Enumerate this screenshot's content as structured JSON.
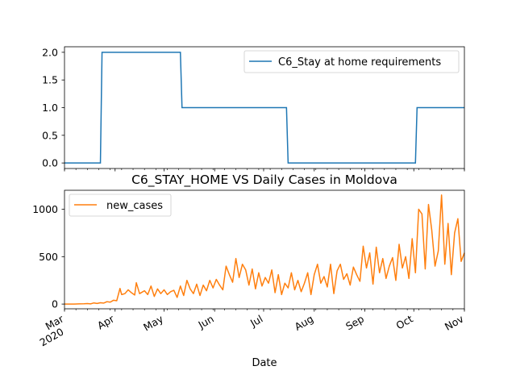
{
  "chart_data": [
    {
      "type": "line",
      "title": "",
      "xlabel": "",
      "ylabel": "",
      "ylim": [
        -0.1,
        2.1
      ],
      "yticks": [
        0.0,
        0.5,
        1.0,
        1.5,
        2.0
      ],
      "ytick_labels": [
        "0.0",
        "0.5",
        "1.0",
        "1.5",
        "2.0"
      ],
      "legend_position": "upper right",
      "color": "#1f77b4",
      "series": [
        {
          "name": "C6_Stay at home requirements",
          "x": [
            "2020-03-01",
            "2020-03-23",
            "2020-03-24",
            "2020-05-11",
            "2020-05-12",
            "2020-07-15",
            "2020-07-16",
            "2020-10-02",
            "2020-10-03",
            "2020-11-01"
          ],
          "y": [
            0,
            0,
            2,
            2,
            1,
            1,
            0,
            0,
            1,
            1
          ]
        }
      ]
    },
    {
      "type": "line",
      "title": "C6_STAY_HOME VS Daily Cases in Moldova",
      "xlabel": "Date",
      "ylabel": "",
      "ylim": [
        -50,
        1200
      ],
      "yticks": [
        0,
        500,
        1000
      ],
      "ytick_labels": [
        "0",
        "500",
        "1000"
      ],
      "legend_position": "upper left",
      "color": "#ff7f0e",
      "x_range": [
        "2020-03-01",
        "2020-11-01"
      ],
      "x_ticks": [
        {
          "date": "2020-03-01",
          "label": "Mar",
          "sublabel": "2020"
        },
        {
          "date": "2020-04-01",
          "label": "Apr"
        },
        {
          "date": "2020-05-01",
          "label": "May"
        },
        {
          "date": "2020-06-01",
          "label": "Jun"
        },
        {
          "date": "2020-07-01",
          "label": "Jul"
        },
        {
          "date": "2020-08-01",
          "label": "Aug"
        },
        {
          "date": "2020-09-01",
          "label": "Sep"
        },
        {
          "date": "2020-10-01",
          "label": "Oct"
        },
        {
          "date": "2020-11-01",
          "label": "Nov"
        }
      ],
      "series": [
        {
          "name": "new_cases",
          "x": [
            "2020-03-01",
            "2020-03-07",
            "2020-03-10",
            "2020-03-13",
            "2020-03-15",
            "2020-03-17",
            "2020-03-19",
            "2020-03-21",
            "2020-03-23",
            "2020-03-25",
            "2020-03-27",
            "2020-03-29",
            "2020-03-31",
            "2020-04-02",
            "2020-04-04",
            "2020-04-05",
            "2020-04-07",
            "2020-04-09",
            "2020-04-11",
            "2020-04-13",
            "2020-04-14",
            "2020-04-16",
            "2020-04-18",
            "2020-04-19",
            "2020-04-21",
            "2020-04-23",
            "2020-04-25",
            "2020-04-27",
            "2020-04-29",
            "2020-05-01",
            "2020-05-03",
            "2020-05-05",
            "2020-05-07",
            "2020-05-09",
            "2020-05-11",
            "2020-05-13",
            "2020-05-15",
            "2020-05-17",
            "2020-05-19",
            "2020-05-21",
            "2020-05-23",
            "2020-05-25",
            "2020-05-27",
            "2020-05-29",
            "2020-05-31",
            "2020-06-02",
            "2020-06-04",
            "2020-06-06",
            "2020-06-08",
            "2020-06-10",
            "2020-06-12",
            "2020-06-14",
            "2020-06-16",
            "2020-06-18",
            "2020-06-20",
            "2020-06-22",
            "2020-06-24",
            "2020-06-26",
            "2020-06-28",
            "2020-06-30",
            "2020-07-02",
            "2020-07-04",
            "2020-07-06",
            "2020-07-08",
            "2020-07-10",
            "2020-07-12",
            "2020-07-14",
            "2020-07-16",
            "2020-07-18",
            "2020-07-20",
            "2020-07-22",
            "2020-07-24",
            "2020-07-26",
            "2020-07-28",
            "2020-07-30",
            "2020-08-01",
            "2020-08-03",
            "2020-08-05",
            "2020-08-07",
            "2020-08-09",
            "2020-08-11",
            "2020-08-13",
            "2020-08-15",
            "2020-08-17",
            "2020-08-19",
            "2020-08-21",
            "2020-08-23",
            "2020-08-25",
            "2020-08-27",
            "2020-08-29",
            "2020-08-31",
            "2020-09-02",
            "2020-09-04",
            "2020-09-06",
            "2020-09-08",
            "2020-09-10",
            "2020-09-12",
            "2020-09-14",
            "2020-09-16",
            "2020-09-18",
            "2020-09-20",
            "2020-09-22",
            "2020-09-24",
            "2020-09-26",
            "2020-09-28",
            "2020-09-30",
            "2020-10-02",
            "2020-10-04",
            "2020-10-06",
            "2020-10-08",
            "2020-10-10",
            "2020-10-12",
            "2020-10-14",
            "2020-10-16",
            "2020-10-18",
            "2020-10-20",
            "2020-10-22",
            "2020-10-24",
            "2020-10-26",
            "2020-10-28",
            "2020-10-30",
            "2020-11-01"
          ],
          "y": [
            0,
            0,
            2,
            3,
            5,
            2,
            12,
            6,
            14,
            10,
            25,
            20,
            40,
            35,
            165,
            100,
            110,
            150,
            120,
            95,
            225,
            110,
            130,
            140,
            100,
            190,
            80,
            160,
            110,
            150,
            100,
            130,
            145,
            70,
            190,
            90,
            250,
            160,
            110,
            210,
            90,
            200,
            140,
            250,
            170,
            260,
            200,
            150,
            400,
            310,
            230,
            480,
            280,
            420,
            360,
            200,
            370,
            160,
            330,
            190,
            280,
            220,
            360,
            120,
            310,
            100,
            220,
            170,
            330,
            150,
            250,
            130,
            220,
            330,
            100,
            310,
            420,
            220,
            290,
            180,
            420,
            110,
            350,
            420,
            260,
            320,
            200,
            390,
            310,
            240,
            610,
            380,
            540,
            210,
            600,
            330,
            480,
            270,
            400,
            490,
            250,
            630,
            380,
            500,
            270,
            690,
            330,
            1000,
            950,
            370,
            1050,
            780,
            400,
            560,
            1150,
            420,
            850,
            310,
            750,
            900,
            450,
            540
          ]
        }
      ]
    }
  ]
}
